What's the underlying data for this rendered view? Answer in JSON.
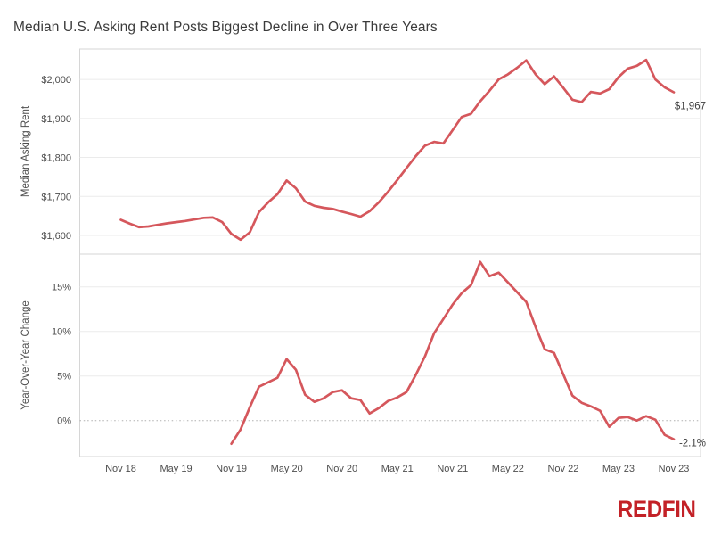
{
  "title": "Median U.S. Asking Rent Posts Biggest Decline in Over Three Years",
  "logo": {
    "text": "REDFIN"
  },
  "colors": {
    "line": "#d5575c",
    "grid": "#ebebeb",
    "panel_border": "#d6d6d6",
    "zero_line": "#b0b0b0",
    "tick_text": "#4e4e4e",
    "axis_title_text": "#4e4e4e",
    "title_text": "#3b3b3b",
    "annotation_text": "#3f3f3f",
    "logo_red": "#c32127"
  },
  "x_axis": {
    "tick_labels": [
      "Nov 18",
      "May 19",
      "Nov 19",
      "May 20",
      "Nov 20",
      "May 21",
      "Nov 21",
      "May 22",
      "Nov 22",
      "May 23",
      "Nov 23"
    ],
    "tick_month_indices": [
      0,
      6,
      12,
      18,
      24,
      30,
      36,
      42,
      48,
      54,
      60
    ]
  },
  "chart_data": [
    {
      "type": "line",
      "name": "median-asking-rent",
      "ylabel": "Median Asking Rent",
      "x_start": "Nov 2018",
      "x_frequency": "monthly",
      "x_month_offset": 0,
      "ylim": [
        1552,
        2078
      ],
      "y_ticks": [
        {
          "label": "$2,000",
          "value": 2000
        },
        {
          "label": "$1,900",
          "value": 1900
        },
        {
          "label": "$1,800",
          "value": 1800
        },
        {
          "label": "$1,700",
          "value": 1700
        },
        {
          "label": "$1,600",
          "value": 1600
        }
      ],
      "values": [
        1640,
        1630,
        1621,
        1623,
        1627,
        1631,
        1634,
        1637,
        1641,
        1645,
        1646,
        1634,
        1604,
        1589,
        1608,
        1660,
        1685,
        1706,
        1741,
        1721,
        1687,
        1676,
        1671,
        1668,
        1661,
        1655,
        1648,
        1662,
        1685,
        1712,
        1742,
        1773,
        1803,
        1830,
        1840,
        1836,
        1870,
        1904,
        1912,
        1944,
        1971,
        2000,
        2013,
        2030,
        2049,
        2013,
        1988,
        2008,
        1979,
        1948,
        1942,
        1968,
        1964,
        1975,
        2006,
        2028,
        2035,
        2050,
        2000,
        1980,
        1967
      ],
      "end_annotation": "$1,967",
      "zero_line": "none"
    },
    {
      "type": "line",
      "name": "year-over-year-change",
      "ylabel": "Year-Over-Year Change",
      "x_start": "Nov 2019",
      "x_frequency": "monthly",
      "x_month_offset": 12,
      "ylim": [
        -4.03,
        18.67
      ],
      "y_ticks": [
        {
          "label": "15%",
          "value": 15
        },
        {
          "label": "10%",
          "value": 10
        },
        {
          "label": "5%",
          "value": 5
        },
        {
          "label": "0%",
          "value": 0
        }
      ],
      "values": [
        -2.6,
        -1.0,
        1.5,
        3.8,
        4.3,
        4.8,
        6.9,
        5.7,
        2.9,
        2.1,
        2.5,
        3.2,
        3.4,
        2.5,
        2.3,
        0.8,
        1.4,
        2.2,
        2.6,
        3.2,
        5.1,
        7.2,
        9.8,
        11.4,
        13.0,
        14.3,
        15.2,
        17.8,
        16.2,
        16.6,
        15.5,
        14.4,
        13.3,
        10.5,
        8.0,
        7.6,
        5.2,
        2.8,
        2.0,
        1.6,
        1.1,
        -0.7,
        0.3,
        0.4,
        0.0,
        0.5,
        0.1,
        -1.6,
        -2.1
      ],
      "end_annotation": "-2.1%",
      "zero_line": "dotted"
    }
  ]
}
